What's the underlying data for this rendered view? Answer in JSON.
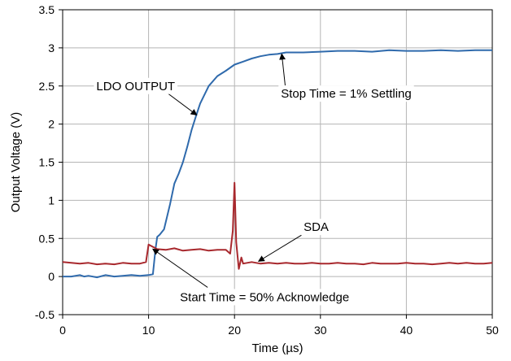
{
  "chart_data": {
    "type": "line",
    "title": "",
    "xlabel": "Time (µs)",
    "ylabel": "Output Voltage (V)",
    "xlim": [
      0,
      50
    ],
    "ylim": [
      -0.5,
      3.5
    ],
    "x_ticks": [
      0,
      10,
      20,
      30,
      40,
      50
    ],
    "y_ticks": [
      -0.5,
      0,
      0.5,
      1,
      1.5,
      2,
      2.5,
      3,
      3.5
    ],
    "y_tick_labels": [
      "-0.5",
      "0",
      "0.5",
      "1",
      "1.5",
      "2",
      "2.5",
      "3",
      "3.5"
    ],
    "grid": true,
    "legend": "none",
    "series": [
      {
        "name": "LDO OUTPUT",
        "color": "#2f6aac",
        "x": [
          0,
          1,
          2,
          2.5,
          3,
          4,
          5,
          6,
          7,
          8,
          9,
          10,
          10.5,
          10.8,
          11.0,
          11.3,
          11.8,
          12.5,
          13,
          13.5,
          14,
          14.5,
          15,
          15.5,
          16,
          17,
          18,
          19,
          20,
          21,
          22,
          23,
          24,
          25,
          26,
          28,
          30,
          32,
          34,
          36,
          38,
          40,
          42,
          44,
          46,
          48,
          50
        ],
        "values": [
          0.0,
          0.0,
          0.02,
          0.0,
          0.01,
          -0.01,
          0.02,
          0.0,
          0.01,
          0.02,
          0.01,
          0.02,
          0.03,
          0.35,
          0.52,
          0.55,
          0.62,
          0.95,
          1.22,
          1.35,
          1.5,
          1.7,
          1.92,
          2.1,
          2.27,
          2.5,
          2.63,
          2.7,
          2.78,
          2.82,
          2.86,
          2.89,
          2.91,
          2.92,
          2.94,
          2.94,
          2.95,
          2.96,
          2.96,
          2.95,
          2.97,
          2.96,
          2.96,
          2.97,
          2.96,
          2.97,
          2.97
        ]
      },
      {
        "name": "SDA",
        "color": "#a8282d",
        "x": [
          0,
          1,
          2,
          3,
          4,
          5,
          6,
          7,
          8,
          9,
          9.7,
          10.0,
          10.5,
          11,
          12,
          13,
          14,
          15,
          16,
          17,
          18,
          19,
          19.5,
          19.8,
          20.0,
          20.2,
          20.5,
          20.8,
          21,
          22,
          23,
          24,
          25,
          26,
          27,
          28,
          29,
          30,
          31,
          32,
          33,
          34,
          35,
          36,
          37,
          38,
          39,
          40,
          41,
          42,
          43,
          44,
          45,
          46,
          47,
          48,
          49,
          50
        ],
        "values": [
          0.19,
          0.18,
          0.17,
          0.18,
          0.16,
          0.17,
          0.16,
          0.18,
          0.17,
          0.17,
          0.19,
          0.42,
          0.39,
          0.36,
          0.35,
          0.37,
          0.34,
          0.35,
          0.36,
          0.34,
          0.35,
          0.35,
          0.3,
          0.6,
          1.23,
          0.45,
          0.1,
          0.25,
          0.17,
          0.19,
          0.17,
          0.18,
          0.17,
          0.18,
          0.17,
          0.17,
          0.18,
          0.17,
          0.17,
          0.18,
          0.17,
          0.17,
          0.16,
          0.18,
          0.17,
          0.17,
          0.17,
          0.18,
          0.17,
          0.17,
          0.16,
          0.17,
          0.18,
          0.17,
          0.18,
          0.17,
          0.17,
          0.18
        ]
      }
    ],
    "annotations": [
      {
        "text": "LDO OUTPUT",
        "x": 8.5,
        "y": 2.5,
        "arrow_to": [
          15.6,
          2.12
        ]
      },
      {
        "text": "Stop Time = 1% Settling",
        "x": 33,
        "y": 2.4,
        "arrow_to": [
          25.5,
          2.92
        ]
      },
      {
        "text": "SDA",
        "x": 29.5,
        "y": 0.65,
        "arrow_to": [
          22.8,
          0.2
        ]
      },
      {
        "text": "Start Time = 50% Acknowledge",
        "x": 23.5,
        "y": -0.27,
        "arrow_to": [
          10.5,
          0.36
        ]
      }
    ]
  }
}
